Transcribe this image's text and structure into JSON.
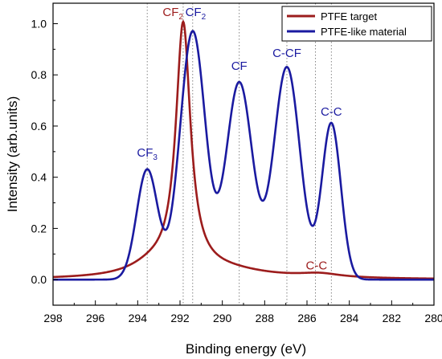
{
  "chart_data": {
    "type": "line",
    "xlabel": "Binding energy (eV)",
    "ylabel": "Intensity (arb.units)",
    "xlim": [
      298,
      280
    ],
    "ylim": [
      -0.1,
      1.08
    ],
    "x_reversed": true,
    "x_ticks": [
      "298",
      "296",
      "294",
      "292",
      "290",
      "288",
      "286",
      "284",
      "282",
      "280"
    ],
    "y_ticks": [
      "0.0",
      "0.2",
      "0.4",
      "0.6",
      "0.8",
      "1.0"
    ],
    "legend_position": "top-right",
    "series": [
      {
        "name": "PTFE target",
        "color": "#9c1c1c",
        "peaks": [
          {
            "center": 291.85,
            "height": 0.97,
            "width": 0.42
          },
          {
            "center": 293.3,
            "height": 0.04,
            "width": 1.3
          },
          {
            "center": 290.0,
            "height": 0.03,
            "width": 2.5
          },
          {
            "center": 285.4,
            "height": 0.015,
            "width": 1.2
          }
        ],
        "baseline": 0.0
      },
      {
        "name": "PTFE-like material",
        "color": "#1a1aa0",
        "peaks": [
          {
            "center": 293.55,
            "height": 0.43,
            "width": 0.5
          },
          {
            "center": 291.4,
            "height": 0.97,
            "width": 0.6
          },
          {
            "center": 289.2,
            "height": 0.77,
            "width": 0.62
          },
          {
            "center": 286.95,
            "height": 0.83,
            "width": 0.62
          },
          {
            "center": 284.85,
            "height": 0.61,
            "width": 0.45
          }
        ],
        "baseline": 0.0
      }
    ],
    "reference_lines_x": [
      293.55,
      291.85,
      291.4,
      289.2,
      286.95,
      285.6,
      284.85
    ],
    "annotations": [
      {
        "text": "CF",
        "sub": "2",
        "x": 291.85,
        "y": 1.03,
        "color": "#9c1c1c",
        "anchor": "end"
      },
      {
        "text": "CF",
        "sub": "2",
        "x": 291.75,
        "y": 1.03,
        "color": "#1a1aa0",
        "anchor": "start"
      },
      {
        "text": "CF",
        "sub": "3",
        "x": 293.55,
        "y": 0.48,
        "color": "#1a1aa0",
        "anchor": "middle"
      },
      {
        "text": "CF",
        "sub": "",
        "x": 289.2,
        "y": 0.82,
        "color": "#1a1aa0",
        "anchor": "middle"
      },
      {
        "text": "C-CF",
        "sub": "",
        "x": 286.95,
        "y": 0.87,
        "color": "#1a1aa0",
        "anchor": "middle"
      },
      {
        "text": "C-C",
        "sub": "",
        "x": 284.85,
        "y": 0.64,
        "color": "#1a1aa0",
        "anchor": "middle"
      },
      {
        "text": "C-C",
        "sub": "",
        "x": 285.55,
        "y": 0.04,
        "color": "#9c1c1c",
        "anchor": "middle"
      }
    ]
  }
}
